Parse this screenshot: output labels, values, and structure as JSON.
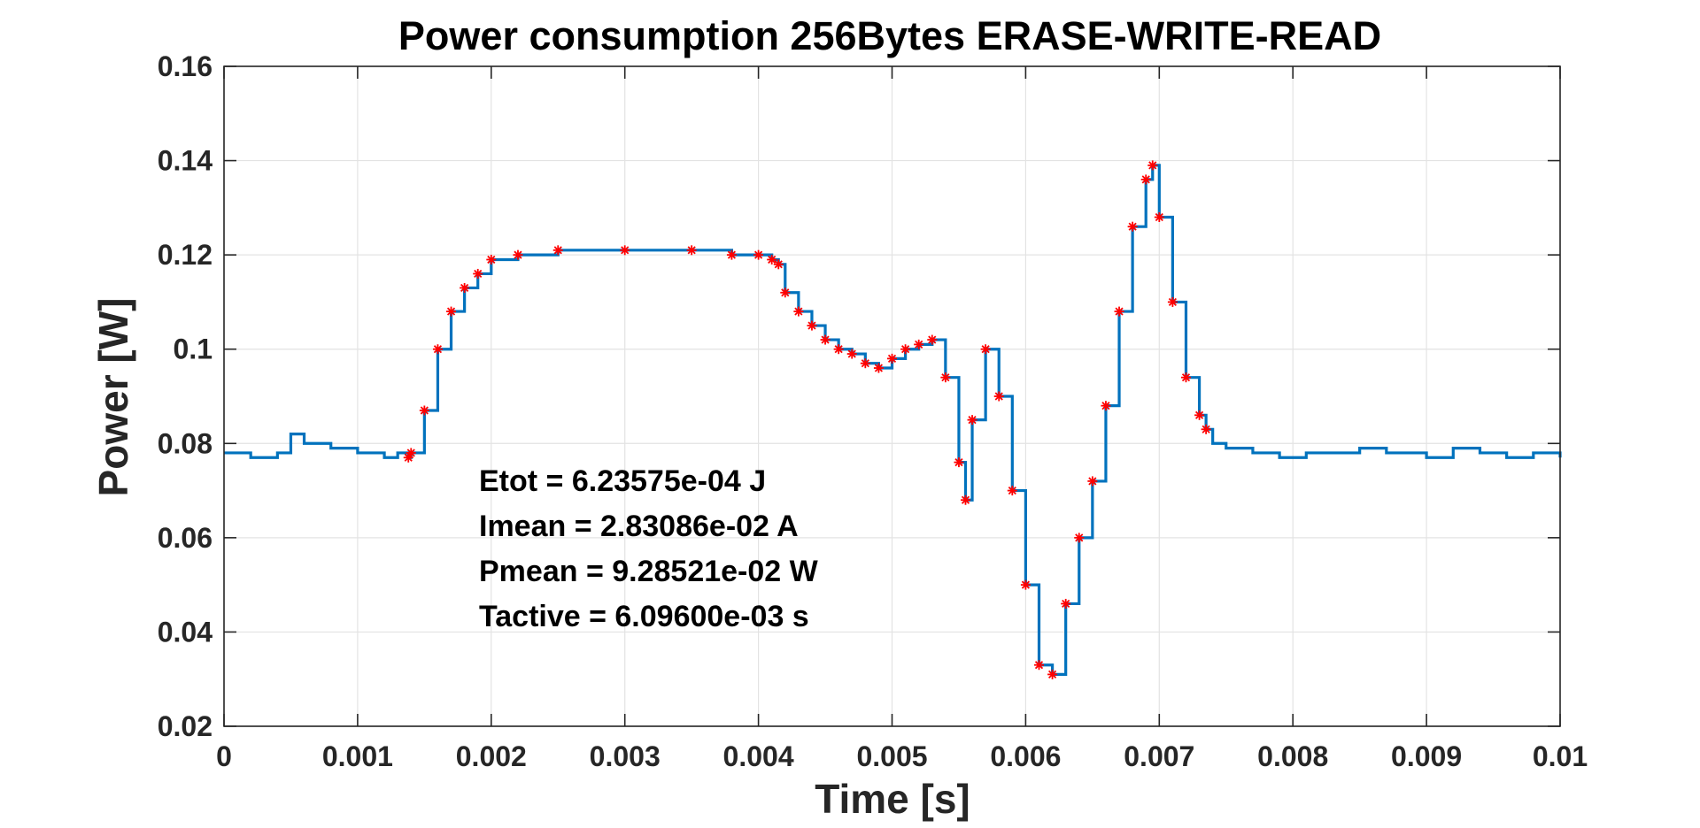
{
  "chart_data": {
    "type": "line",
    "title": "Power consumption 256Bytes ERASE-WRITE-READ",
    "xlabel": "Time [s]",
    "ylabel": "Power [W]",
    "xlim": [
      0,
      0.01
    ],
    "ylim": [
      0.02,
      0.16
    ],
    "grid": true,
    "x_ticks": [
      0,
      0.001,
      0.002,
      0.003,
      0.004,
      0.005,
      0.006,
      0.007,
      0.008,
      0.009,
      0.01
    ],
    "x_tick_labels": [
      "0",
      "0.001",
      "0.002",
      "0.003",
      "0.004",
      "0.005",
      "0.006",
      "0.007",
      "0.008",
      "0.009",
      "0.01"
    ],
    "y_ticks": [
      0.02,
      0.04,
      0.06,
      0.08,
      0.1,
      0.12,
      0.14,
      0.16
    ],
    "y_tick_labels": [
      "0.02",
      "0.04",
      "0.06",
      "0.08",
      "0.1",
      "0.12",
      "0.14",
      "0.16"
    ],
    "annotations": [
      "Etot = 6.23575e-04 J",
      "Imean = 2.83086e-02 A",
      "Pmean = 9.28521e-02 W",
      "Tactive = 6.09600e-03 s"
    ],
    "series": [
      {
        "style": "line",
        "color": "#0072BD",
        "x": [
          0,
          0.0002,
          0.0004,
          0.0005,
          0.0006,
          0.0008,
          0.001,
          0.0012,
          0.0013,
          0.00138,
          0.0014,
          0.0015,
          0.0016,
          0.0017,
          0.0018,
          0.0019,
          0.002,
          0.0022,
          0.0025,
          0.003,
          0.0035,
          0.0038,
          0.004,
          0.0041,
          0.00415,
          0.0042,
          0.0043,
          0.0044,
          0.0045,
          0.0046,
          0.0047,
          0.0048,
          0.0049,
          0.005,
          0.0051,
          0.0052,
          0.0053,
          0.0054,
          0.0055,
          0.00555,
          0.0056,
          0.0057,
          0.0058,
          0.0059,
          0.006,
          0.0061,
          0.0062,
          0.0063,
          0.0064,
          0.0065,
          0.0066,
          0.0067,
          0.0068,
          0.0069,
          0.00695,
          0.007,
          0.0071,
          0.0072,
          0.0073,
          0.00735,
          0.0074,
          0.0075,
          0.0077,
          0.0079,
          0.0081,
          0.0083,
          0.0085,
          0.0087,
          0.009,
          0.0092,
          0.0094,
          0.0096,
          0.0098,
          0.01
        ],
        "y": [
          0.078,
          0.077,
          0.078,
          0.082,
          0.08,
          0.079,
          0.078,
          0.077,
          0.078,
          0.077,
          0.078,
          0.087,
          0.1,
          0.108,
          0.113,
          0.116,
          0.119,
          0.12,
          0.121,
          0.121,
          0.121,
          0.12,
          0.12,
          0.119,
          0.118,
          0.112,
          0.108,
          0.105,
          0.102,
          0.1,
          0.099,
          0.097,
          0.096,
          0.098,
          0.1,
          0.101,
          0.102,
          0.094,
          0.076,
          0.068,
          0.085,
          0.1,
          0.09,
          0.07,
          0.05,
          0.033,
          0.031,
          0.046,
          0.06,
          0.072,
          0.088,
          0.108,
          0.126,
          0.136,
          0.139,
          0.128,
          0.11,
          0.094,
          0.086,
          0.083,
          0.08,
          0.079,
          0.078,
          0.077,
          0.078,
          0.078,
          0.079,
          0.078,
          0.077,
          0.079,
          0.078,
          0.077,
          0.078,
          0.077
        ]
      },
      {
        "style": "markers",
        "marker": "*",
        "color": "#FF0000",
        "x": [
          0.00138,
          0.0014,
          0.0015,
          0.0016,
          0.0017,
          0.0018,
          0.0019,
          0.002,
          0.0022,
          0.0025,
          0.003,
          0.0035,
          0.0038,
          0.004,
          0.0041,
          0.00415,
          0.0042,
          0.0043,
          0.0044,
          0.0045,
          0.0046,
          0.0047,
          0.0048,
          0.0049,
          0.005,
          0.0051,
          0.0052,
          0.0053,
          0.0054,
          0.0055,
          0.00555,
          0.0056,
          0.0057,
          0.0058,
          0.0059,
          0.006,
          0.0061,
          0.0062,
          0.0063,
          0.0064,
          0.0065,
          0.0066,
          0.0067,
          0.0068,
          0.0069,
          0.00695,
          0.007,
          0.0071,
          0.0072,
          0.0073,
          0.00735
        ],
        "y": [
          0.077,
          0.078,
          0.087,
          0.1,
          0.108,
          0.113,
          0.116,
          0.119,
          0.12,
          0.121,
          0.121,
          0.121,
          0.12,
          0.12,
          0.119,
          0.118,
          0.112,
          0.108,
          0.105,
          0.102,
          0.1,
          0.099,
          0.097,
          0.096,
          0.098,
          0.1,
          0.101,
          0.102,
          0.094,
          0.076,
          0.068,
          0.085,
          0.1,
          0.09,
          0.07,
          0.05,
          0.033,
          0.031,
          0.046,
          0.06,
          0.072,
          0.088,
          0.108,
          0.126,
          0.136,
          0.139,
          0.128,
          0.11,
          0.094,
          0.086,
          0.083
        ]
      }
    ]
  }
}
